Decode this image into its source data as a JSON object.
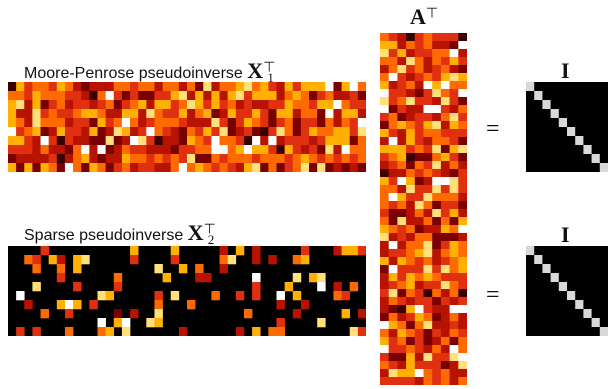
{
  "labels": {
    "x1_text": "Moore-Penrose pseudoinverse ",
    "x1_sym": "X",
    "x1_sup": "⊤",
    "x1_sub": "1",
    "x2_text": "Sparse pseudoinverse ",
    "x2_sym": "X",
    "x2_sup": "⊤",
    "x2_sub": "2",
    "a_sym": "A",
    "a_sup": "⊤",
    "i_top": "I",
    "i_bottom": "I"
  },
  "operators": {
    "equals_top": "=",
    "equals_bottom": "="
  },
  "matrices": {
    "x1": {
      "rows": 10,
      "cols": 44,
      "sparsity": 0.0
    },
    "x2": {
      "rows": 10,
      "cols": 44,
      "sparsity": 0.8
    },
    "a": {
      "rows": 44,
      "cols": 10,
      "sparsity": 0.0
    },
    "identity_size": 10
  },
  "colors": {
    "colormap": [
      "#000000",
      "#3a0000",
      "#7a0000",
      "#b81200",
      "#e03010",
      "#ff6a00",
      "#ffb000",
      "#ffe07a",
      "#ffffff"
    ],
    "identity_bg": "#000000",
    "identity_diag": "#d8d8d8"
  }
}
